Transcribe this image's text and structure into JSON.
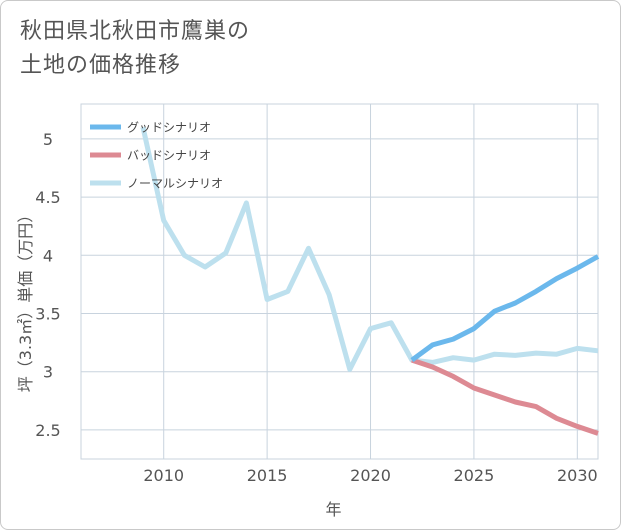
{
  "title": {
    "line1": "秋田県北秋田市鷹巣の",
    "line2": "土地の価格推移"
  },
  "chart_data": {
    "type": "line",
    "xlabel": "年",
    "ylabel": "坪（3.3㎡）単価（万円）",
    "xlim": [
      2006,
      2031
    ],
    "ylim": [
      2.25,
      5.3
    ],
    "xticks": [
      2010,
      2015,
      2020,
      2025,
      2030
    ],
    "yticks": [
      2.5,
      3,
      3.5,
      4,
      4.5,
      5
    ],
    "grid": true,
    "legend_position": "top-left",
    "series": [
      {
        "name": "グッドシナリオ",
        "color": "#6bb8ec",
        "x": [
          2022,
          2023,
          2024,
          2025,
          2026,
          2027,
          2028,
          2029,
          2030,
          2031
        ],
        "y": [
          3.1,
          3.23,
          3.28,
          3.37,
          3.52,
          3.59,
          3.69,
          3.8,
          3.89,
          3.99
        ]
      },
      {
        "name": "バッドシナリオ",
        "color": "#dd8a93",
        "x": [
          2022,
          2023,
          2024,
          2025,
          2026,
          2027,
          2028,
          2029,
          2030,
          2031
        ],
        "y": [
          3.1,
          3.04,
          2.96,
          2.86,
          2.8,
          2.74,
          2.7,
          2.6,
          2.53,
          2.47
        ]
      },
      {
        "name": "ノーマルシナリオ",
        "color": "#bde0ee",
        "x": [
          2009,
          2010,
          2011,
          2012,
          2013,
          2014,
          2015,
          2016,
          2017,
          2018,
          2019,
          2020,
          2021,
          2022,
          2023,
          2024,
          2025,
          2026,
          2027,
          2028,
          2029,
          2030,
          2031
        ],
        "y": [
          5.1,
          4.3,
          4.0,
          3.9,
          4.02,
          4.45,
          3.62,
          3.69,
          4.06,
          3.66,
          3.02,
          3.37,
          3.42,
          3.1,
          3.08,
          3.12,
          3.1,
          3.15,
          3.14,
          3.16,
          3.15,
          3.2,
          3.18
        ]
      }
    ]
  }
}
